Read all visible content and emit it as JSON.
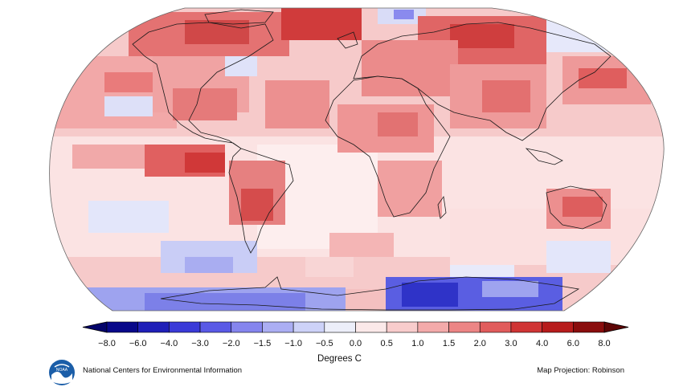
{
  "legend": {
    "unit_label": "Degrees C",
    "ticks": [
      "−8.0",
      "−6.0",
      "−4.0",
      "−3.0",
      "−2.0",
      "−1.5",
      "−1.0",
      "−0.5",
      "0.0",
      "0.5",
      "1.0",
      "1.5",
      "2.0",
      "3.0",
      "4.0",
      "6.0",
      "8.0"
    ],
    "colors": [
      "#08088a",
      "#1f1fb8",
      "#3a3ad8",
      "#5a5ae6",
      "#8585ee",
      "#abaef3",
      "#cdd2f8",
      "#eceef9",
      "#fbe9e9",
      "#f8cccc",
      "#f3aaaa",
      "#ec8585",
      "#e15c5c",
      "#d03535",
      "#b71c1c",
      "#8a0d0d"
    ]
  },
  "footer": {
    "credit": "National Centers for Environmental Information",
    "projection": "Map Projection: Robinson"
  },
  "logo": {
    "icon": "noaa-logo",
    "text": "NOAA"
  }
}
